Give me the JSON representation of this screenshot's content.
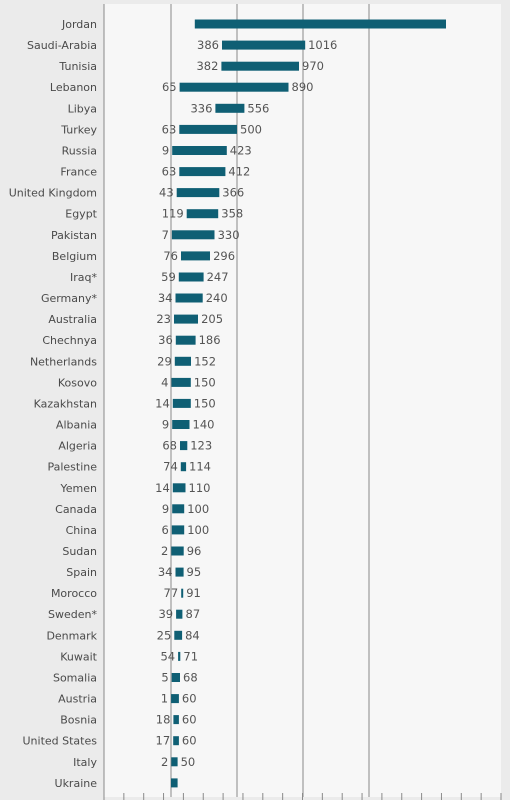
{
  "chart_data": {
    "type": "bar",
    "subtype": "floating-range",
    "orientation": "horizontal",
    "grid": true,
    "legend": "none",
    "colors": {
      "bar": "#0f5f74",
      "plot_background": "#f7f7f7",
      "page_background": "#ebebeb",
      "grid": "#8a8a8a",
      "text": "#4a4a4a"
    },
    "xlim": [
      -100,
      2000
    ],
    "grid_values": [
      0,
      500,
      1000,
      1500
    ],
    "categories": [
      "Jordan",
      "Saudi-Arabia",
      "Tunisia",
      "Lebanon",
      "Libya",
      "Turkey",
      "Russia",
      "France",
      "United Kingdom",
      "Egypt",
      "Pakistan",
      "Belgium",
      "Iraq*",
      "Germany*",
      "Australia",
      "Chechnya",
      "Netherlands",
      "Kosovo",
      "Kazakhstan",
      "Albania",
      "Algeria",
      "Palestine",
      "Yemen",
      "Canada",
      "China",
      "Sudan",
      "Spain",
      "Morocco",
      "Sweden*",
      "Denmark",
      "Kuwait",
      "Somalia",
      "Austria",
      "Bosnia",
      "United States",
      "Italy",
      "Ukraine"
    ],
    "series": [
      {
        "name": "",
        "low": [
          null,
          386,
          382,
          65,
          336,
          63,
          9,
          63,
          43,
          119,
          7,
          76,
          59,
          34,
          23,
          36,
          29,
          4,
          14,
          9,
          68,
          74,
          14,
          9,
          6,
          2,
          34,
          77,
          39,
          25,
          54,
          5,
          1,
          18,
          17,
          2,
          null
        ],
        "high": [
          null,
          1016,
          970,
          890,
          556,
          500,
          423,
          412,
          366,
          358,
          330,
          296,
          247,
          240,
          205,
          186,
          152,
          150,
          150,
          140,
          123,
          114,
          110,
          100,
          100,
          96,
          95,
          91,
          87,
          84,
          71,
          68,
          60,
          60,
          60,
          50,
          null
        ]
      }
    ],
    "bar_range_estimates": {
      "Jordan": [
        180,
        2090
      ],
      "Ukraine": [
        0,
        50
      ]
    }
  }
}
